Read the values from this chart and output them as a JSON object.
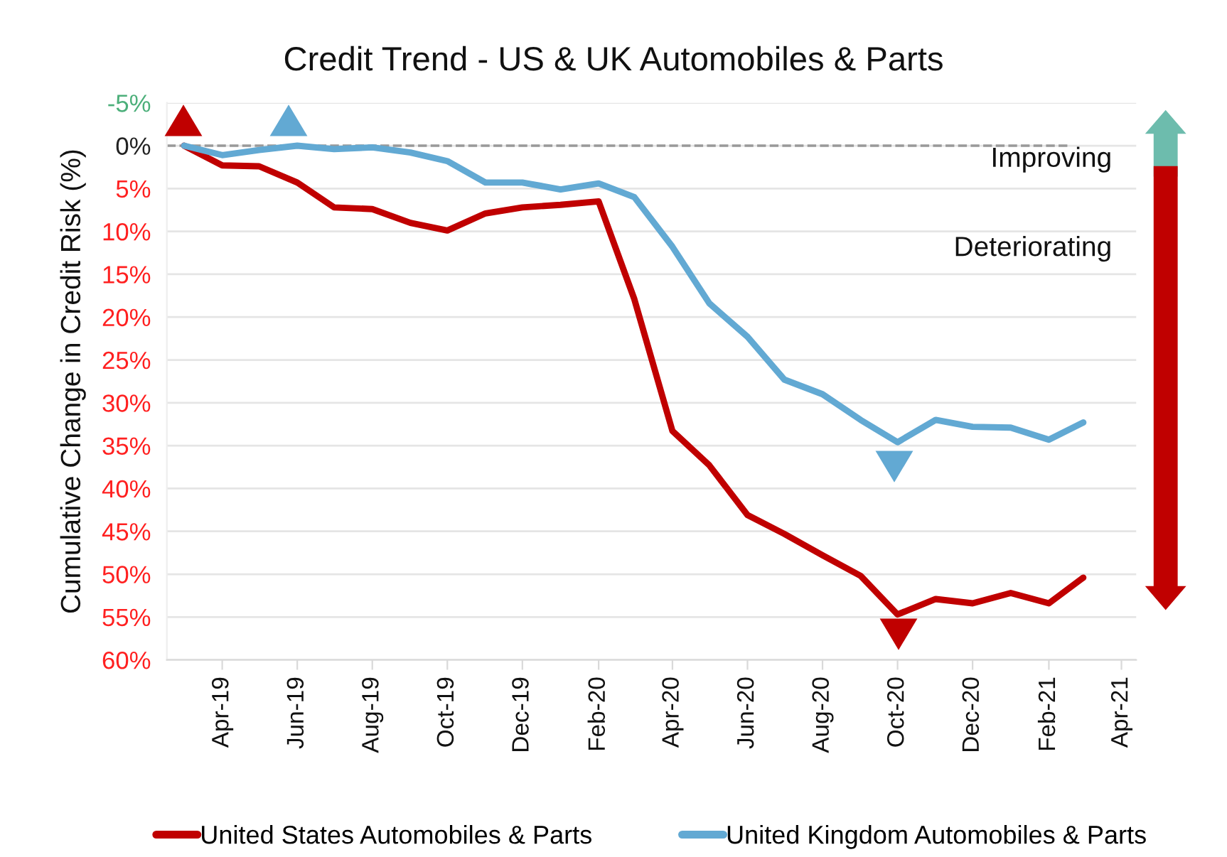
{
  "chart_data": {
    "type": "line",
    "title": "Credit Trend - US & UK Automobiles & Parts",
    "ylabel": "Cumulative Change in Credit Risk (%)",
    "x": [
      "2019-03",
      "2019-04",
      "2019-05",
      "2019-06",
      "2019-07",
      "2019-08",
      "2019-09",
      "2019-10",
      "2019-11",
      "2019-12",
      "2020-01",
      "2020-02",
      "2020-03",
      "2020-04",
      "2020-05",
      "2020-06",
      "2020-07",
      "2020-08",
      "2020-09",
      "2020-10",
      "2020-11",
      "2020-12",
      "2021-01",
      "2021-02",
      "2021-03"
    ],
    "series": [
      {
        "name": "United States Automobiles & Parts",
        "color": "#c00000",
        "values": [
          0,
          2.3,
          2.4,
          4.3,
          7.2,
          7.4,
          9.0,
          9.9,
          7.9,
          7.2,
          6.9,
          6.5,
          17.9,
          33.3,
          37.3,
          43.1,
          45.3,
          47.8,
          50.2,
          54.7,
          52.9,
          53.4,
          52.2,
          53.4,
          50.4
        ]
      },
      {
        "name": "United Kingdom Automobiles & Parts",
        "color": "#62a9d3",
        "values": [
          0,
          1.1,
          0.5,
          0,
          0.4,
          0.2,
          0.8,
          1.8,
          4.3,
          4.3,
          5.1,
          4.4,
          6.0,
          11.8,
          18.4,
          22.3,
          27.3,
          29.0,
          32.0,
          34.6,
          32.0,
          32.8,
          32.9,
          34.3,
          32.3
        ]
      }
    ],
    "xlim": [
      "2019-02-15",
      "2021-04-13"
    ],
    "xticks": [
      {
        "value": "2019-04-01",
        "label": "Apr-19"
      },
      {
        "value": "2019-06-01",
        "label": "Jun-19"
      },
      {
        "value": "2019-08-01",
        "label": "Aug-19"
      },
      {
        "value": "2019-10-01",
        "label": "Oct-19"
      },
      {
        "value": "2019-12-01",
        "label": "Dec-19"
      },
      {
        "value": "2020-02-01",
        "label": "Feb-20"
      },
      {
        "value": "2020-04-01",
        "label": "Apr-20"
      },
      {
        "value": "2020-06-01",
        "label": "Jun-20"
      },
      {
        "value": "2020-08-01",
        "label": "Aug-20"
      },
      {
        "value": "2020-10-01",
        "label": "Oct-20"
      },
      {
        "value": "2020-12-01",
        "label": "Dec-20"
      },
      {
        "value": "2021-02-01",
        "label": "Feb-21"
      },
      {
        "value": "2021-04-01",
        "label": "Apr-21"
      }
    ],
    "ylim": [
      60,
      -5
    ],
    "yticks": [
      {
        "value": -5,
        "label": "-5%"
      },
      {
        "value": 0,
        "label": "0%"
      },
      {
        "value": 5,
        "label": "5%"
      },
      {
        "value": 10,
        "label": "10%"
      },
      {
        "value": 15,
        "label": "15%"
      },
      {
        "value": 20,
        "label": "20%"
      },
      {
        "value": 25,
        "label": "25%"
      },
      {
        "value": 30,
        "label": "30%"
      },
      {
        "value": 35,
        "label": "35%"
      },
      {
        "value": 40,
        "label": "40%"
      },
      {
        "value": 45,
        "label": "45%"
      },
      {
        "value": 50,
        "label": "50%"
      },
      {
        "value": 55,
        "label": "55%"
      },
      {
        "value": 60,
        "label": "60%"
      }
    ],
    "ref_lines": [
      {
        "axis": "y",
        "value": 0,
        "color": "#999999",
        "line_style": "dashed",
        "label": null
      }
    ],
    "annotations": [
      "Improving",
      "Deteriorating"
    ],
    "grid": "y",
    "legend": "bottom",
    "marker": "none",
    "line_style": "solid"
  }
}
